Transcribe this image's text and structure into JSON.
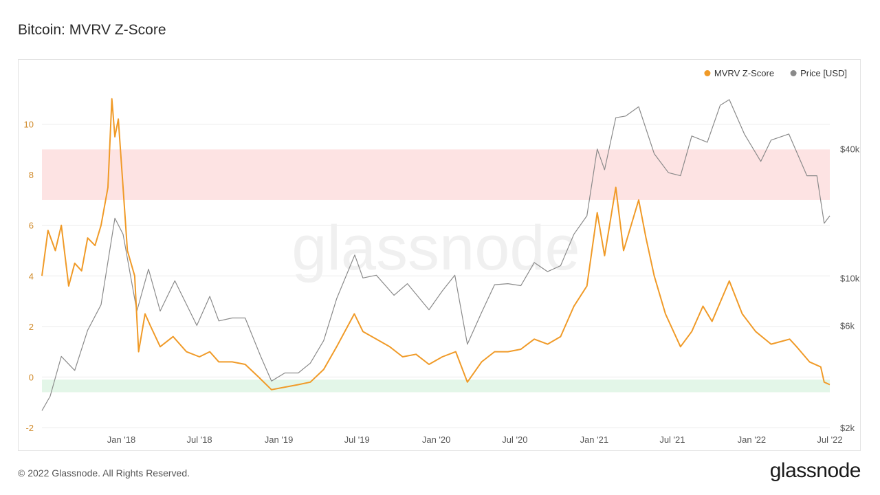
{
  "header": {
    "title": "Bitcoin: MVRV Z-Score"
  },
  "footer": {
    "copyright": "© 2022 Glassnode. All Rights Reserved.",
    "logo_text": "glassnode"
  },
  "watermark": "glassnode",
  "colors": {
    "zscore": "#f09a27",
    "price": "#8a8a8a",
    "red_band": "#fde3e3",
    "green_band": "#e3f6e8",
    "left_axis_text": "#d08a2a",
    "right_axis_text": "#555555",
    "grid": "#ececec",
    "watermark": "#f0f0f0"
  },
  "chart_data": {
    "type": "line",
    "x_range": [
      "2017-07-01",
      "2022-07-01"
    ],
    "x_ticks": [
      {
        "date": "2018-01-01",
        "label": "Jan '18"
      },
      {
        "date": "2018-07-01",
        "label": "Jul '18"
      },
      {
        "date": "2019-01-01",
        "label": "Jan '19"
      },
      {
        "date": "2019-07-01",
        "label": "Jul '19"
      },
      {
        "date": "2020-01-01",
        "label": "Jan '20"
      },
      {
        "date": "2020-07-01",
        "label": "Jul '20"
      },
      {
        "date": "2021-01-01",
        "label": "Jan '21"
      },
      {
        "date": "2021-07-01",
        "label": "Jul '21"
      },
      {
        "date": "2022-01-01",
        "label": "Jan '22"
      },
      {
        "date": "2022-07-01",
        "label": "Jul '22"
      }
    ],
    "left_axis": {
      "ylim": [
        -2,
        12
      ],
      "ticks": [
        -2,
        0,
        2,
        4,
        6,
        8,
        10
      ]
    },
    "right_axis": {
      "scale": "log",
      "ylim": [
        2000,
        90000
      ],
      "ticks": [
        {
          "value": 2000,
          "label": "$2k"
        },
        {
          "value": 6000,
          "label": "$6k"
        },
        {
          "value": 10000,
          "label": "$10k"
        },
        {
          "value": 40000,
          "label": "$40k"
        }
      ]
    },
    "bands": [
      {
        "name": "red",
        "from": 7,
        "to": 9
      },
      {
        "name": "green",
        "from": -0.6,
        "to": -0.1
      }
    ],
    "legend_position": "top-right",
    "grid": true,
    "series": [
      {
        "name": "MVRV Z-Score",
        "axis": "left",
        "points": [
          [
            "2017-07-01",
            4.0
          ],
          [
            "2017-07-15",
            5.8
          ],
          [
            "2017-08-01",
            5.0
          ],
          [
            "2017-08-15",
            6.0
          ],
          [
            "2017-09-01",
            3.6
          ],
          [
            "2017-09-15",
            4.5
          ],
          [
            "2017-10-01",
            4.2
          ],
          [
            "2017-10-15",
            5.5
          ],
          [
            "2017-11-01",
            5.2
          ],
          [
            "2017-11-15",
            6.0
          ],
          [
            "2017-12-01",
            7.5
          ],
          [
            "2017-12-10",
            11.0
          ],
          [
            "2017-12-17",
            9.5
          ],
          [
            "2017-12-25",
            10.2
          ],
          [
            "2018-01-05",
            7.5
          ],
          [
            "2018-01-15",
            5.0
          ],
          [
            "2018-02-01",
            4.0
          ],
          [
            "2018-02-10",
            1.0
          ],
          [
            "2018-02-25",
            2.5
          ],
          [
            "2018-03-10",
            2.0
          ],
          [
            "2018-04-01",
            1.2
          ],
          [
            "2018-05-01",
            1.6
          ],
          [
            "2018-06-01",
            1.0
          ],
          [
            "2018-07-01",
            0.8
          ],
          [
            "2018-07-25",
            1.0
          ],
          [
            "2018-08-15",
            0.6
          ],
          [
            "2018-09-15",
            0.6
          ],
          [
            "2018-10-15",
            0.5
          ],
          [
            "2018-11-15",
            0.0
          ],
          [
            "2018-12-15",
            -0.5
          ],
          [
            "2019-01-15",
            -0.4
          ],
          [
            "2019-02-15",
            -0.3
          ],
          [
            "2019-03-15",
            -0.2
          ],
          [
            "2019-04-15",
            0.3
          ],
          [
            "2019-05-15",
            1.2
          ],
          [
            "2019-06-25",
            2.5
          ],
          [
            "2019-07-15",
            1.8
          ],
          [
            "2019-08-15",
            1.5
          ],
          [
            "2019-09-15",
            1.2
          ],
          [
            "2019-10-15",
            0.8
          ],
          [
            "2019-11-15",
            0.9
          ],
          [
            "2019-12-15",
            0.5
          ],
          [
            "2020-01-15",
            0.8
          ],
          [
            "2020-02-15",
            1.0
          ],
          [
            "2020-03-13",
            -0.2
          ],
          [
            "2020-04-15",
            0.6
          ],
          [
            "2020-05-15",
            1.0
          ],
          [
            "2020-06-15",
            1.0
          ],
          [
            "2020-07-15",
            1.1
          ],
          [
            "2020-08-15",
            1.5
          ],
          [
            "2020-09-15",
            1.3
          ],
          [
            "2020-10-15",
            1.6
          ],
          [
            "2020-11-15",
            2.8
          ],
          [
            "2020-12-15",
            3.6
          ],
          [
            "2021-01-08",
            6.5
          ],
          [
            "2021-01-25",
            4.8
          ],
          [
            "2021-02-20",
            7.5
          ],
          [
            "2021-03-10",
            5.0
          ],
          [
            "2021-04-14",
            7.0
          ],
          [
            "2021-05-01",
            5.5
          ],
          [
            "2021-05-20",
            4.0
          ],
          [
            "2021-06-15",
            2.5
          ],
          [
            "2021-07-20",
            1.2
          ],
          [
            "2021-08-15",
            1.8
          ],
          [
            "2021-09-10",
            2.8
          ],
          [
            "2021-10-01",
            2.2
          ],
          [
            "2021-11-10",
            3.8
          ],
          [
            "2021-12-10",
            2.5
          ],
          [
            "2022-01-10",
            1.8
          ],
          [
            "2022-02-15",
            1.3
          ],
          [
            "2022-03-30",
            1.5
          ],
          [
            "2022-04-15",
            1.2
          ],
          [
            "2022-05-15",
            0.6
          ],
          [
            "2022-06-10",
            0.4
          ],
          [
            "2022-06-18",
            -0.2
          ],
          [
            "2022-07-01",
            -0.3
          ]
        ]
      },
      {
        "name": "Price [USD]",
        "axis": "right",
        "points": [
          [
            "2017-07-01",
            2400
          ],
          [
            "2017-07-20",
            2800
          ],
          [
            "2017-08-15",
            4300
          ],
          [
            "2017-09-15",
            3700
          ],
          [
            "2017-10-15",
            5700
          ],
          [
            "2017-11-15",
            7500
          ],
          [
            "2017-12-17",
            19000
          ],
          [
            "2018-01-05",
            16000
          ],
          [
            "2018-02-06",
            7000
          ],
          [
            "2018-03-05",
            11000
          ],
          [
            "2018-04-01",
            7000
          ],
          [
            "2018-05-05",
            9700
          ],
          [
            "2018-06-25",
            6000
          ],
          [
            "2018-07-25",
            8200
          ],
          [
            "2018-08-15",
            6300
          ],
          [
            "2018-09-15",
            6500
          ],
          [
            "2018-10-15",
            6500
          ],
          [
            "2018-11-20",
            4300
          ],
          [
            "2018-12-15",
            3300
          ],
          [
            "2019-01-15",
            3600
          ],
          [
            "2019-02-15",
            3600
          ],
          [
            "2019-03-15",
            4000
          ],
          [
            "2019-04-15",
            5100
          ],
          [
            "2019-05-15",
            8000
          ],
          [
            "2019-06-26",
            12800
          ],
          [
            "2019-07-15",
            10000
          ],
          [
            "2019-08-15",
            10300
          ],
          [
            "2019-09-25",
            8300
          ],
          [
            "2019-10-26",
            9400
          ],
          [
            "2019-12-15",
            7100
          ],
          [
            "2020-01-15",
            8700
          ],
          [
            "2020-02-13",
            10300
          ],
          [
            "2020-03-13",
            4900
          ],
          [
            "2020-04-15",
            6900
          ],
          [
            "2020-05-15",
            9300
          ],
          [
            "2020-06-15",
            9400
          ],
          [
            "2020-07-15",
            9200
          ],
          [
            "2020-08-15",
            11800
          ],
          [
            "2020-09-15",
            10700
          ],
          [
            "2020-10-15",
            11400
          ],
          [
            "2020-11-15",
            16000
          ],
          [
            "2020-12-15",
            19500
          ],
          [
            "2021-01-08",
            40000
          ],
          [
            "2021-01-25",
            32000
          ],
          [
            "2021-02-20",
            56000
          ],
          [
            "2021-03-15",
            57000
          ],
          [
            "2021-04-14",
            63000
          ],
          [
            "2021-05-20",
            38000
          ],
          [
            "2021-06-22",
            31000
          ],
          [
            "2021-07-20",
            30000
          ],
          [
            "2021-08-15",
            46000
          ],
          [
            "2021-09-20",
            43000
          ],
          [
            "2021-10-20",
            64000
          ],
          [
            "2021-11-10",
            68000
          ],
          [
            "2021-12-15",
            47000
          ],
          [
            "2022-01-22",
            35000
          ],
          [
            "2022-02-15",
            44000
          ],
          [
            "2022-03-28",
            47000
          ],
          [
            "2022-05-09",
            30000
          ],
          [
            "2022-06-01",
            30000
          ],
          [
            "2022-06-18",
            18000
          ],
          [
            "2022-07-01",
            19500
          ]
        ]
      }
    ]
  }
}
